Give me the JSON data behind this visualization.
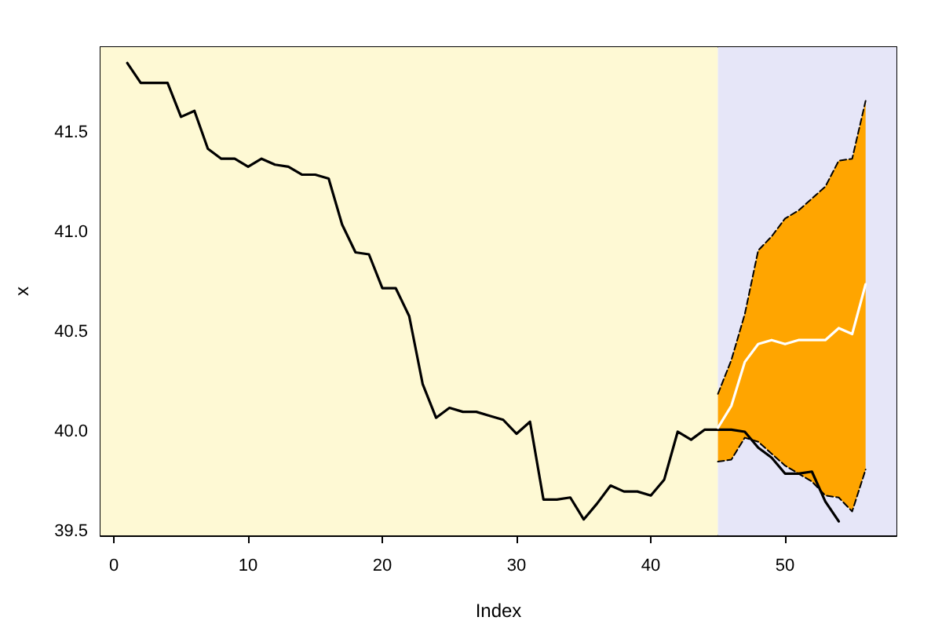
{
  "chart_data": {
    "type": "line",
    "xlabel": "Index",
    "ylabel": "x",
    "xlim": [
      -1,
      58.3
    ],
    "xticks": [
      0,
      10,
      20,
      30,
      40,
      50
    ],
    "ylim": [
      39.48,
      41.93
    ],
    "yticks": [
      39.5,
      {
        "value": 40,
        "label": "40.0"
      },
      40.5,
      {
        "value": 41,
        "label": "41.0"
      },
      41.5
    ],
    "grid": false,
    "marker": "none",
    "bands": [
      {
        "axis": "x",
        "from": -1,
        "to": 45,
        "color": "#fef9d4"
      },
      {
        "axis": "x",
        "from": 45,
        "to": 58.3,
        "color": "#e6e6f8"
      }
    ],
    "series": [
      {
        "color": "#000000",
        "line_style": "solid",
        "x": [
          1,
          2,
          3,
          4,
          5,
          6,
          7,
          8,
          9,
          10,
          11,
          12,
          13,
          14,
          15,
          16,
          17,
          18,
          19,
          20,
          21,
          22,
          23,
          24,
          25,
          26,
          27,
          28,
          29,
          30,
          31,
          32,
          33,
          34,
          35,
          36,
          37,
          38,
          39,
          40,
          41,
          42,
          43,
          44,
          45,
          46,
          47,
          48,
          49,
          50,
          51,
          52,
          53,
          54
        ],
        "values": [
          41.85,
          41.75,
          41.75,
          41.75,
          41.58,
          41.61,
          41.42,
          41.37,
          41.37,
          41.33,
          41.37,
          41.34,
          41.33,
          41.29,
          41.29,
          41.27,
          41.04,
          40.9,
          40.89,
          40.72,
          40.72,
          40.58,
          40.24,
          40.07,
          40.12,
          40.1,
          40.1,
          40.08,
          40.06,
          39.99,
          40.05,
          39.66,
          39.66,
          39.67,
          39.56,
          39.64,
          39.73,
          39.7,
          39.7,
          39.68,
          39.76,
          40.0,
          39.96,
          40.01,
          40.01,
          40.01,
          40.0,
          39.92,
          39.87,
          39.79,
          39.79,
          39.8,
          39.65,
          39.55
        ]
      },
      {
        "color": "#000000",
        "line_style": "dashed",
        "x": [
          45,
          46,
          47,
          48,
          49,
          50,
          51,
          52,
          53,
          54,
          55,
          56
        ],
        "values": [
          40.19,
          40.36,
          40.59,
          40.91,
          40.98,
          41.07,
          41.11,
          41.17,
          41.23,
          41.36,
          41.37,
          41.66
        ]
      },
      {
        "color": "#000000",
        "line_style": "dashed",
        "x": [
          45,
          46,
          47,
          48,
          49,
          50,
          51,
          52,
          53,
          54,
          55,
          56
        ],
        "values": [
          39.85,
          39.86,
          39.97,
          39.95,
          39.89,
          39.83,
          39.79,
          39.75,
          39.68,
          39.67,
          39.6,
          39.81
        ]
      },
      {
        "color": "#ffffff",
        "line_style": "solid",
        "x": [
          45,
          46,
          47,
          48,
          49,
          50,
          51,
          52,
          53,
          54,
          55,
          56
        ],
        "values": [
          40.02,
          40.13,
          40.35,
          40.44,
          40.46,
          40.44,
          40.46,
          40.46,
          40.46,
          40.52,
          40.49,
          40.74
        ],
        "upper": [
          40.19,
          40.36,
          40.59,
          40.91,
          40.98,
          41.07,
          41.11,
          41.17,
          41.23,
          41.36,
          41.37,
          41.66
        ],
        "lower": [
          39.85,
          39.86,
          39.97,
          39.95,
          39.89,
          39.83,
          39.79,
          39.75,
          39.68,
          39.67,
          39.6,
          39.81
        ]
      }
    ]
  }
}
